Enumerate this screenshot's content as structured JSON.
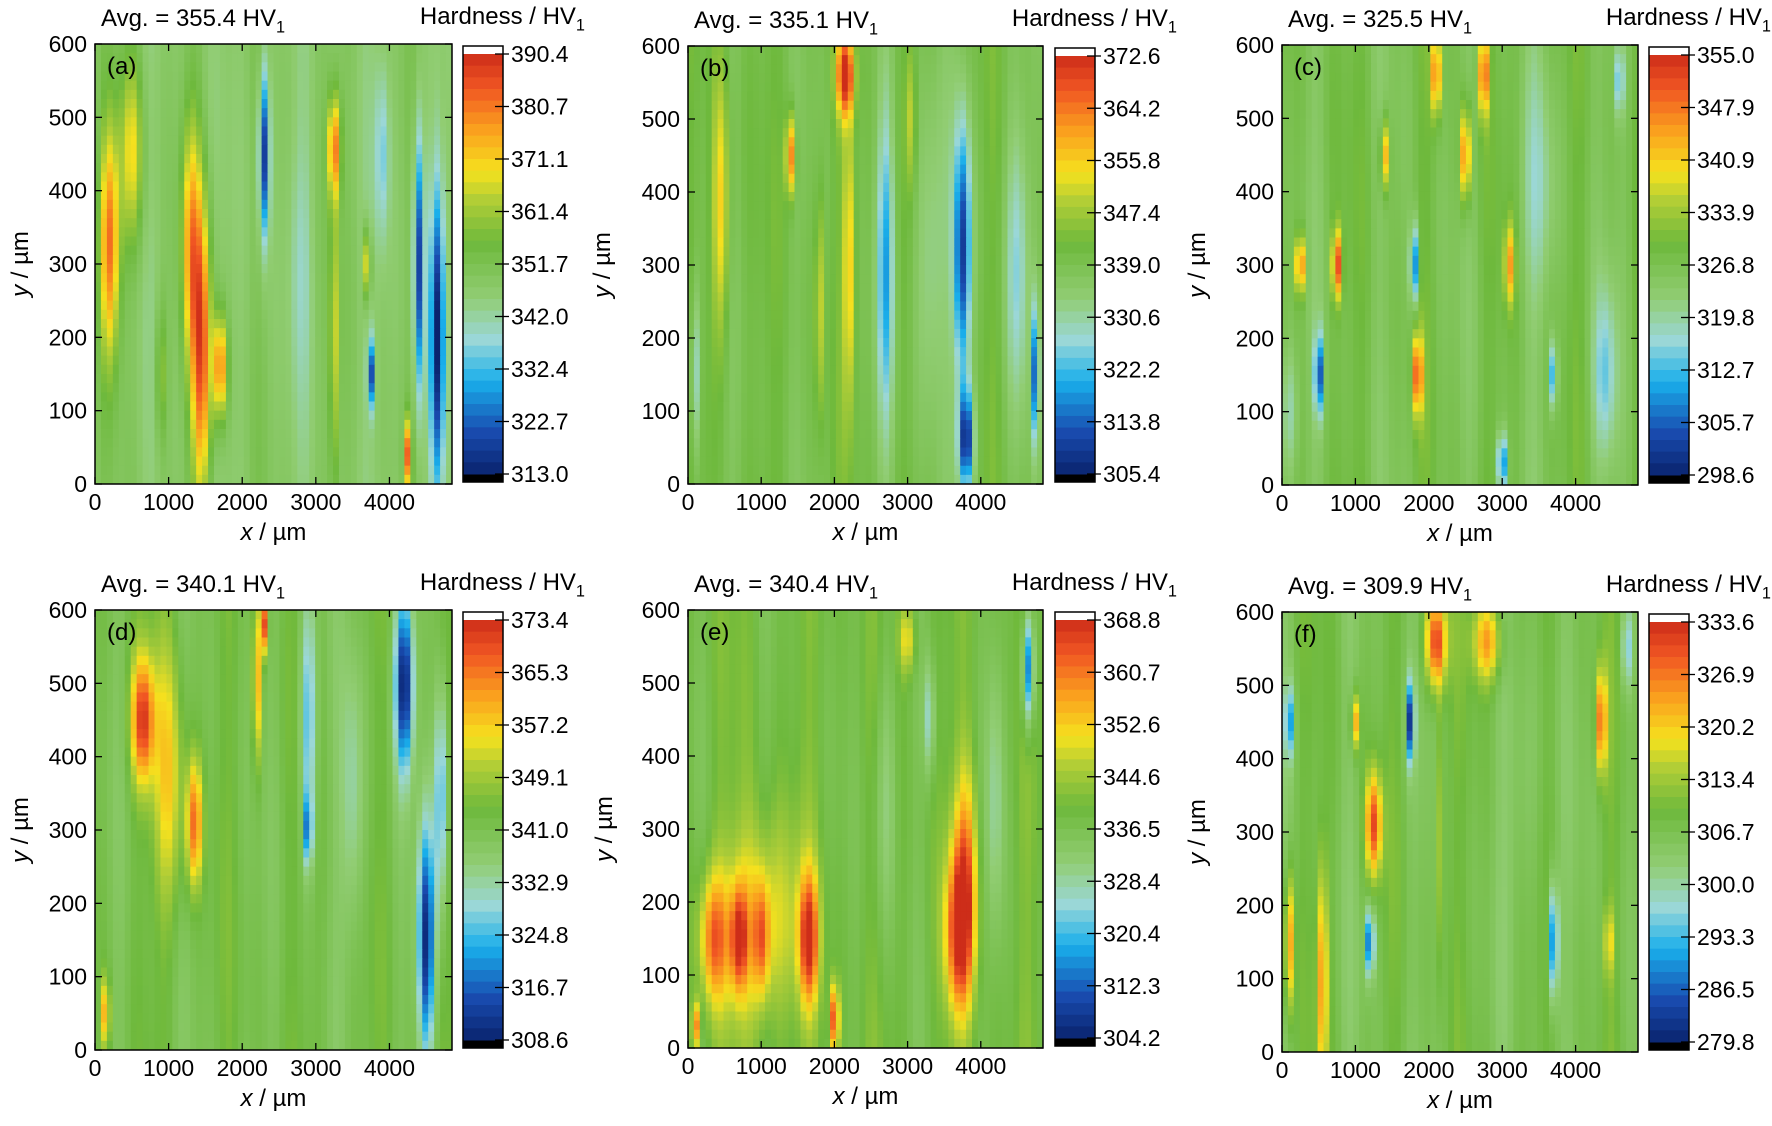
{
  "chart_data": [
    {
      "type": "heatmap",
      "panel_label": "(a)",
      "avg_label": "Avg. = 355.4 HV",
      "colorbar_title": "Hardness / HV",
      "subscript": "1",
      "xlabel_var": "x",
      "xlabel_unit": " / µm",
      "ylabel_var": "y",
      "ylabel_unit": " / µm",
      "xlim": [
        0,
        4850
      ],
      "ylim": [
        0,
        600
      ],
      "xticks": [
        "0",
        "1000",
        "2000",
        "3000",
        "4000"
      ],
      "yticks": [
        "0",
        "100",
        "200",
        "300",
        "400",
        "500",
        "600"
      ],
      "colorbar_ticks": [
        "390.4",
        "380.7",
        "371.1",
        "361.4",
        "351.7",
        "342.0",
        "332.4",
        "322.7",
        "313.0"
      ],
      "vmin": 313.0,
      "vmax": 390.4,
      "base": 348,
      "features": [
        {
          "x": 200,
          "y": 330,
          "rx": 170,
          "ry": 200,
          "v": 380
        },
        {
          "x": 500,
          "y": 450,
          "rx": 200,
          "ry": 160,
          "v": 368
        },
        {
          "x": 1450,
          "y": 180,
          "rx": 170,
          "ry": 260,
          "v": 384
        },
        {
          "x": 1300,
          "y": 330,
          "rx": 160,
          "ry": 210,
          "v": 372
        },
        {
          "x": 1700,
          "y": 160,
          "rx": 120,
          "ry": 90,
          "v": 380
        },
        {
          "x": 2300,
          "y": 450,
          "rx": 90,
          "ry": 150,
          "v": 316
        },
        {
          "x": 3250,
          "y": 460,
          "rx": 110,
          "ry": 90,
          "v": 378
        },
        {
          "x": 3250,
          "y": 200,
          "rx": 80,
          "ry": 260,
          "v": 366
        },
        {
          "x": 4400,
          "y": 300,
          "rx": 90,
          "ry": 230,
          "v": 318
        },
        {
          "x": 4650,
          "y": 200,
          "rx": 120,
          "ry": 260,
          "v": 314
        },
        {
          "x": 3750,
          "y": 150,
          "rx": 60,
          "ry": 60,
          "v": 322
        },
        {
          "x": 4250,
          "y": 40,
          "rx": 60,
          "ry": 60,
          "v": 380
        },
        {
          "x": 3700,
          "y": 300,
          "rx": 60,
          "ry": 60,
          "v": 374
        },
        {
          "x": 2800,
          "y": 300,
          "rx": 200,
          "ry": 220,
          "v": 342
        },
        {
          "x": 900,
          "y": 150,
          "rx": 100,
          "ry": 120,
          "v": 360
        },
        {
          "x": 3900,
          "y": 450,
          "rx": 120,
          "ry": 150,
          "v": 336
        }
      ]
    },
    {
      "type": "heatmap",
      "panel_label": "(b)",
      "avg_label": "Avg. = 335.1 HV",
      "colorbar_title": "Hardness / HV",
      "subscript": "1",
      "xlabel_var": "x",
      "xlabel_unit": " / µm",
      "ylabel_var": "y",
      "ylabel_unit": " / µm",
      "xlim": [
        0,
        4850
      ],
      "ylim": [
        0,
        600
      ],
      "xticks": [
        "0",
        "1000",
        "2000",
        "3000",
        "4000"
      ],
      "yticks": [
        "0",
        "100",
        "200",
        "300",
        "400",
        "500",
        "600"
      ],
      "colorbar_ticks": [
        "372.6",
        "364.2",
        "355.8",
        "347.4",
        "339.0",
        "330.6",
        "322.2",
        "313.8",
        "305.4"
      ],
      "vmin": 305.4,
      "vmax": 372.6,
      "base": 340,
      "features": [
        {
          "x": 450,
          "y": 380,
          "rx": 150,
          "ry": 240,
          "v": 356
        },
        {
          "x": 2150,
          "y": 560,
          "rx": 150,
          "ry": 70,
          "v": 372
        },
        {
          "x": 1400,
          "y": 450,
          "rx": 80,
          "ry": 70,
          "v": 366
        },
        {
          "x": 2200,
          "y": 300,
          "rx": 100,
          "ry": 250,
          "v": 356
        },
        {
          "x": 1800,
          "y": 250,
          "rx": 80,
          "ry": 200,
          "v": 352
        },
        {
          "x": 2700,
          "y": 300,
          "rx": 150,
          "ry": 280,
          "v": 322
        },
        {
          "x": 3750,
          "y": 320,
          "rx": 150,
          "ry": 230,
          "v": 310
        },
        {
          "x": 3800,
          "y": 60,
          "rx": 130,
          "ry": 90,
          "v": 308
        },
        {
          "x": 3300,
          "y": 300,
          "rx": 280,
          "ry": 320,
          "v": 330
        },
        {
          "x": 4500,
          "y": 300,
          "rx": 200,
          "ry": 250,
          "v": 328
        },
        {
          "x": 4750,
          "y": 150,
          "rx": 60,
          "ry": 120,
          "v": 314
        },
        {
          "x": 3050,
          "y": 500,
          "rx": 90,
          "ry": 120,
          "v": 350
        },
        {
          "x": 100,
          "y": 150,
          "rx": 80,
          "ry": 150,
          "v": 326
        }
      ]
    },
    {
      "type": "heatmap",
      "panel_label": "(c)",
      "avg_label": "Avg. = 325.5 HV",
      "colorbar_title": "Hardness / HV",
      "subscript": "1",
      "xlabel_var": "x",
      "xlabel_unit": " / µm",
      "ylabel_var": "y",
      "ylabel_unit": " / µm",
      "xlim": [
        0,
        4850
      ],
      "ylim": [
        0,
        600
      ],
      "xticks": [
        "0",
        "1000",
        "2000",
        "3000",
        "4000"
      ],
      "yticks": [
        "0",
        "100",
        "200",
        "300",
        "400",
        "500",
        "600"
      ],
      "colorbar_ticks": [
        "355.0",
        "347.9",
        "340.9",
        "333.9",
        "326.8",
        "319.8",
        "312.7",
        "305.7",
        "298.6"
      ],
      "vmin": 298.6,
      "vmax": 355.0,
      "base": 327,
      "features": [
        {
          "x": 250,
          "y": 300,
          "rx": 80,
          "ry": 50,
          "v": 350
        },
        {
          "x": 750,
          "y": 300,
          "rx": 80,
          "ry": 60,
          "v": 352
        },
        {
          "x": 500,
          "y": 150,
          "rx": 70,
          "ry": 70,
          "v": 304
        },
        {
          "x": 1800,
          "y": 300,
          "rx": 70,
          "ry": 70,
          "v": 306
        },
        {
          "x": 1850,
          "y": 150,
          "rx": 80,
          "ry": 70,
          "v": 352
        },
        {
          "x": 1400,
          "y": 450,
          "rx": 70,
          "ry": 60,
          "v": 346
        },
        {
          "x": 2500,
          "y": 450,
          "rx": 80,
          "ry": 80,
          "v": 352
        },
        {
          "x": 2100,
          "y": 560,
          "rx": 80,
          "ry": 70,
          "v": 350
        },
        {
          "x": 2750,
          "y": 560,
          "rx": 80,
          "ry": 70,
          "v": 352
        },
        {
          "x": 3100,
          "y": 300,
          "rx": 90,
          "ry": 70,
          "v": 344
        },
        {
          "x": 3700,
          "y": 150,
          "rx": 60,
          "ry": 60,
          "v": 308
        },
        {
          "x": 3000,
          "y": 30,
          "rx": 80,
          "ry": 50,
          "v": 306
        },
        {
          "x": 4600,
          "y": 550,
          "rx": 70,
          "ry": 60,
          "v": 312
        },
        {
          "x": 4400,
          "y": 150,
          "rx": 200,
          "ry": 150,
          "v": 316
        },
        {
          "x": 100,
          "y": 100,
          "rx": 150,
          "ry": 120,
          "v": 318
        },
        {
          "x": 3500,
          "y": 400,
          "rx": 300,
          "ry": 200,
          "v": 320
        }
      ]
    },
    {
      "type": "heatmap",
      "panel_label": "(d)",
      "avg_label": "Avg. = 340.1 HV",
      "colorbar_title": "Hardness / HV",
      "subscript": "1",
      "xlabel_var": "x",
      "xlabel_unit": " / µm",
      "ylabel_var": "y",
      "ylabel_unit": " / µm",
      "xlim": [
        0,
        4850
      ],
      "ylim": [
        0,
        600
      ],
      "xticks": [
        "0",
        "1000",
        "2000",
        "3000",
        "4000"
      ],
      "yticks": [
        "0",
        "100",
        "200",
        "300",
        "400",
        "500",
        "600"
      ],
      "colorbar_ticks": [
        "373.4",
        "365.3",
        "357.2",
        "349.1",
        "341.0",
        "332.9",
        "324.8",
        "316.7",
        "308.6"
      ],
      "vmin": 308.6,
      "vmax": 373.4,
      "base": 342,
      "features": [
        {
          "x": 650,
          "y": 450,
          "rx": 200,
          "ry": 110,
          "v": 370
        },
        {
          "x": 1350,
          "y": 310,
          "rx": 140,
          "ry": 110,
          "v": 366
        },
        {
          "x": 1000,
          "y": 380,
          "rx": 260,
          "ry": 230,
          "v": 356
        },
        {
          "x": 2200,
          "y": 500,
          "rx": 70,
          "ry": 140,
          "v": 362
        },
        {
          "x": 2300,
          "y": 580,
          "rx": 60,
          "ry": 50,
          "v": 370
        },
        {
          "x": 2900,
          "y": 450,
          "rx": 140,
          "ry": 220,
          "v": 324
        },
        {
          "x": 2900,
          "y": 300,
          "rx": 60,
          "ry": 60,
          "v": 318
        },
        {
          "x": 4200,
          "y": 500,
          "rx": 160,
          "ry": 150,
          "v": 310
        },
        {
          "x": 4500,
          "y": 150,
          "rx": 140,
          "ry": 200,
          "v": 312
        },
        {
          "x": 4700,
          "y": 350,
          "rx": 120,
          "ry": 200,
          "v": 322
        },
        {
          "x": 150,
          "y": 50,
          "rx": 60,
          "ry": 60,
          "v": 366
        },
        {
          "x": 3500,
          "y": 350,
          "rx": 200,
          "ry": 250,
          "v": 332
        }
      ]
    },
    {
      "type": "heatmap",
      "panel_label": "(e)",
      "avg_label": "Avg. = 340.4 HV",
      "colorbar_title": "Hardness / HV",
      "subscript": "1",
      "xlabel_var": "x",
      "xlabel_unit": " / µm",
      "ylabel_var": "y",
      "ylabel_unit": " / µm",
      "xlim": [
        0,
        4850
      ],
      "ylim": [
        0,
        600
      ],
      "xticks": [
        "0",
        "1000",
        "2000",
        "3000",
        "4000"
      ],
      "yticks": [
        "0",
        "100",
        "200",
        "300",
        "400",
        "500",
        "600"
      ],
      "colorbar_ticks": [
        "368.8",
        "360.7",
        "352.6",
        "344.6",
        "336.5",
        "328.4",
        "320.4",
        "312.3",
        "304.2"
      ],
      "vmin": 304.2,
      "vmax": 368.8,
      "base": 339,
      "features": [
        {
          "x": 350,
          "y": 150,
          "rx": 250,
          "ry": 110,
          "v": 360
        },
        {
          "x": 700,
          "y": 150,
          "rx": 150,
          "ry": 90,
          "v": 362
        },
        {
          "x": 1000,
          "y": 150,
          "rx": 140,
          "ry": 100,
          "v": 356
        },
        {
          "x": 1650,
          "y": 150,
          "rx": 170,
          "ry": 110,
          "v": 366
        },
        {
          "x": 1000,
          "y": 170,
          "rx": 700,
          "ry": 180,
          "v": 352
        },
        {
          "x": 3700,
          "y": 160,
          "rx": 240,
          "ry": 140,
          "v": 366
        },
        {
          "x": 3800,
          "y": 250,
          "rx": 200,
          "ry": 180,
          "v": 356
        },
        {
          "x": 2000,
          "y": 40,
          "rx": 80,
          "ry": 60,
          "v": 366
        },
        {
          "x": 4650,
          "y": 520,
          "rx": 100,
          "ry": 100,
          "v": 312
        },
        {
          "x": 3300,
          "y": 450,
          "rx": 90,
          "ry": 100,
          "v": 326
        },
        {
          "x": 2700,
          "y": 350,
          "rx": 200,
          "ry": 250,
          "v": 330
        },
        {
          "x": 4200,
          "y": 350,
          "rx": 150,
          "ry": 250,
          "v": 330
        },
        {
          "x": 3000,
          "y": 560,
          "rx": 150,
          "ry": 60,
          "v": 352
        },
        {
          "x": 100,
          "y": 30,
          "rx": 60,
          "ry": 40,
          "v": 364
        }
      ]
    },
    {
      "type": "heatmap",
      "panel_label": "(f)",
      "avg_label": "Avg. = 309.9 HV",
      "colorbar_title": "Hardness / HV",
      "subscript": "1",
      "xlabel_var": "x",
      "xlabel_unit": " / µm",
      "ylabel_var": "y",
      "ylabel_unit": " / µm",
      "xlim": [
        0,
        4850
      ],
      "ylim": [
        0,
        600
      ],
      "xticks": [
        "0",
        "1000",
        "2000",
        "3000",
        "4000"
      ],
      "yticks": [
        "0",
        "100",
        "200",
        "300",
        "400",
        "500",
        "600"
      ],
      "colorbar_ticks": [
        "333.6",
        "326.9",
        "320.2",
        "313.4",
        "306.7",
        "300.0",
        "293.3",
        "286.5",
        "279.8"
      ],
      "vmin": 279.8,
      "vmax": 333.6,
      "base": 307,
      "features": [
        {
          "x": 1250,
          "y": 310,
          "rx": 140,
          "ry": 90,
          "v": 330
        },
        {
          "x": 2100,
          "y": 560,
          "rx": 180,
          "ry": 80,
          "v": 332
        },
        {
          "x": 2800,
          "y": 560,
          "rx": 250,
          "ry": 70,
          "v": 324
        },
        {
          "x": 1750,
          "y": 450,
          "rx": 70,
          "ry": 70,
          "v": 284
        },
        {
          "x": 1200,
          "y": 150,
          "rx": 70,
          "ry": 60,
          "v": 284
        },
        {
          "x": 3700,
          "y": 150,
          "rx": 80,
          "ry": 100,
          "v": 286
        },
        {
          "x": 4350,
          "y": 450,
          "rx": 90,
          "ry": 90,
          "v": 328
        },
        {
          "x": 550,
          "y": 100,
          "rx": 90,
          "ry": 200,
          "v": 324
        },
        {
          "x": 100,
          "y": 150,
          "rx": 80,
          "ry": 120,
          "v": 326
        },
        {
          "x": 1000,
          "y": 450,
          "rx": 70,
          "ry": 50,
          "v": 324
        },
        {
          "x": 2150,
          "y": 300,
          "rx": 80,
          "ry": 250,
          "v": 316
        },
        {
          "x": 4450,
          "y": 150,
          "rx": 60,
          "ry": 60,
          "v": 322
        },
        {
          "x": 100,
          "y": 450,
          "rx": 80,
          "ry": 60,
          "v": 292
        },
        {
          "x": 3300,
          "y": 350,
          "rx": 300,
          "ry": 250,
          "v": 303
        },
        {
          "x": 4700,
          "y": 550,
          "rx": 90,
          "ry": 70,
          "v": 296
        }
      ]
    }
  ]
}
